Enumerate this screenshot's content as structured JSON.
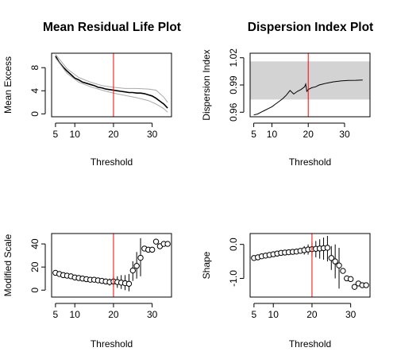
{
  "chart_data": [
    {
      "id": "mrl",
      "type": "line",
      "title": "Mean Residual Life Plot",
      "xlabel": "Threshold",
      "ylabel": "Mean Excess",
      "xlim": [
        4,
        35
      ],
      "ylim": [
        -0.5,
        10.5
      ],
      "xticks": [
        5,
        10,
        20,
        30
      ],
      "yticks": [
        0,
        4,
        8
      ],
      "vline": 20,
      "series": [
        {
          "role": "mean",
          "x": [
            5,
            6,
            7,
            8,
            9,
            10,
            11,
            12,
            13,
            14,
            15,
            16,
            17,
            18,
            19,
            20,
            21,
            22,
            23,
            24,
            25,
            26,
            27,
            28,
            29,
            30,
            31,
            32,
            33,
            34
          ],
          "values": [
            10.0,
            8.9,
            8.1,
            7.4,
            6.8,
            6.2,
            5.9,
            5.5,
            5.3,
            5.1,
            4.9,
            4.6,
            4.5,
            4.3,
            4.2,
            4.1,
            4.0,
            3.9,
            3.8,
            3.7,
            3.7,
            3.6,
            3.6,
            3.5,
            3.3,
            3.1,
            2.7,
            2.2,
            1.7,
            1.0
          ]
        },
        {
          "role": "upper",
          "x": [
            5,
            8,
            11,
            14,
            17,
            20,
            23,
            26,
            29,
            31,
            33,
            34
          ],
          "values": [
            10.3,
            7.8,
            6.3,
            5.5,
            4.9,
            4.6,
            4.4,
            4.4,
            4.3,
            4.1,
            2.9,
            2.0
          ]
        },
        {
          "role": "lower",
          "x": [
            5,
            8,
            11,
            14,
            17,
            20,
            23,
            26,
            29,
            31,
            33,
            34
          ],
          "values": [
            9.7,
            7.0,
            5.5,
            4.7,
            4.1,
            3.6,
            3.2,
            2.8,
            2.3,
            1.7,
            0.9,
            0.3
          ]
        }
      ]
    },
    {
      "id": "di",
      "type": "line",
      "title": "Dispersion Index Plot",
      "xlabel": "Threshold",
      "ylabel": "Dispersion Index",
      "xlim": [
        4,
        37
      ],
      "ylim": [
        0.955,
        1.025
      ],
      "xticks": [
        5,
        10,
        20,
        30
      ],
      "yticks": [
        0.96,
        0.99,
        1.02
      ],
      "ytick_labels": [
        "0.96",
        "0.99",
        "1.02"
      ],
      "vline": 20,
      "band": [
        0.974,
        1.016
      ],
      "series": [
        {
          "role": "index",
          "x": [
            5,
            6,
            7,
            8,
            9,
            10,
            11,
            12,
            13,
            14,
            15,
            16,
            17,
            18,
            19,
            19.3,
            19.6,
            20,
            21,
            22,
            23,
            24,
            25,
            27,
            29,
            31,
            33,
            35
          ],
          "values": [
            0.957,
            0.958,
            0.96,
            0.962,
            0.964,
            0.966,
            0.969,
            0.972,
            0.975,
            0.979,
            0.984,
            0.98,
            0.983,
            0.985,
            0.988,
            0.991,
            0.983,
            0.985,
            0.987,
            0.988,
            0.99,
            0.991,
            0.992,
            0.9935,
            0.9945,
            0.995,
            0.9952,
            0.9955
          ]
        }
      ]
    },
    {
      "id": "ms",
      "type": "scatter",
      "title": "",
      "xlabel": "Threshold",
      "ylabel": "Modified Scale",
      "xlim": [
        4,
        35
      ],
      "ylim": [
        -6,
        49
      ],
      "xticks": [
        5,
        10,
        20,
        30
      ],
      "yticks": [
        0,
        20,
        40
      ],
      "vline": 20,
      "series": [
        {
          "role": "estimate",
          "x": [
            5,
            6,
            7,
            8,
            9,
            10,
            11,
            12,
            13,
            14,
            15,
            16,
            17,
            18,
            19,
            20,
            21,
            22,
            23,
            24,
            25,
            26,
            27,
            28,
            29,
            30,
            31,
            32,
            33,
            34
          ],
          "values": [
            15,
            14,
            13,
            12.5,
            12,
            11,
            10.5,
            10,
            9.5,
            9,
            9,
            8.5,
            8,
            7.5,
            7,
            7.5,
            7,
            6.5,
            6,
            5.5,
            17,
            21,
            28,
            36,
            35,
            35,
            42,
            38,
            40,
            40
          ],
          "lower": [
            null,
            null,
            null,
            null,
            null,
            null,
            null,
            null,
            null,
            null,
            null,
            null,
            null,
            5,
            4,
            3,
            2,
            1,
            0,
            -1,
            8,
            10,
            12,
            null,
            null,
            null,
            null,
            null,
            null,
            null
          ],
          "upper": [
            null,
            null,
            null,
            null,
            null,
            null,
            null,
            null,
            null,
            null,
            null,
            null,
            null,
            10,
            10,
            12,
            12,
            13,
            13,
            14,
            25,
            33,
            45,
            null,
            null,
            null,
            null,
            null,
            null,
            null
          ]
        }
      ]
    },
    {
      "id": "sh",
      "type": "scatter",
      "title": "",
      "xlabel": "Threshold",
      "ylabel": "Shape",
      "xlim": [
        4,
        35
      ],
      "ylim": [
        -1.55,
        0.32
      ],
      "xticks": [
        5,
        10,
        20,
        30
      ],
      "yticks": [
        -1.0,
        0.0
      ],
      "ytick_labels": [
        "-1.0",
        "0.0"
      ],
      "vline": 20,
      "series": [
        {
          "role": "estimate",
          "x": [
            5,
            6,
            7,
            8,
            9,
            10,
            11,
            12,
            13,
            14,
            15,
            16,
            17,
            18,
            19,
            20,
            21,
            22,
            23,
            24,
            25,
            26,
            27,
            28,
            29,
            30,
            31,
            32,
            33,
            34
          ],
          "values": [
            -0.4,
            -0.38,
            -0.35,
            -0.33,
            -0.31,
            -0.29,
            -0.27,
            -0.25,
            -0.24,
            -0.23,
            -0.22,
            -0.21,
            -0.19,
            -0.17,
            -0.15,
            -0.14,
            -0.13,
            -0.12,
            -0.11,
            -0.1,
            -0.4,
            -0.5,
            -0.62,
            -0.78,
            -1.0,
            -1.02,
            -1.25,
            -1.15,
            -1.2,
            -1.2
          ],
          "lower": [
            null,
            null,
            null,
            null,
            null,
            null,
            null,
            null,
            null,
            null,
            null,
            null,
            null,
            -0.3,
            -0.3,
            -0.35,
            -0.38,
            -0.42,
            -0.45,
            -0.5,
            -0.75,
            -1.0,
            -1.3,
            null,
            null,
            null,
            null,
            null,
            null,
            null
          ],
          "upper": [
            null,
            null,
            null,
            null,
            null,
            null,
            null,
            null,
            null,
            null,
            null,
            null,
            null,
            -0.05,
            0.0,
            0.05,
            0.1,
            0.15,
            0.2,
            0.25,
            -0.05,
            0.0,
            -0.1,
            null,
            null,
            null,
            null,
            null,
            null,
            null
          ]
        }
      ]
    }
  ]
}
